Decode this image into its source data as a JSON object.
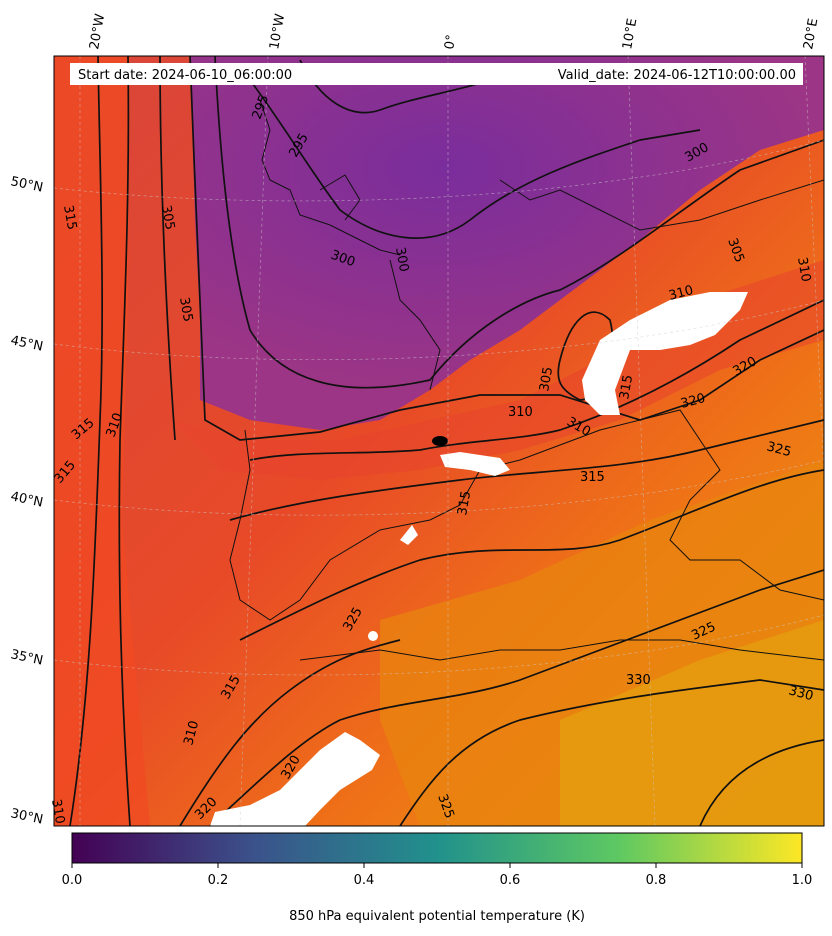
{
  "header": {
    "start_date": "Start date: 2024-06-10_06:00:00",
    "valid_date": "Valid_date: 2024-06-12T10:00:00.00"
  },
  "map": {
    "lon_labels": [
      "20°W",
      "10°W",
      "0°",
      "10°E",
      "20°E"
    ],
    "lat_labels": [
      "50°N",
      "45°N",
      "40°N",
      "35°N",
      "30°N"
    ],
    "contour_labels": [
      "295",
      "295",
      "300",
      "300",
      "300",
      "305",
      "305",
      "305",
      "310",
      "315",
      "315",
      "315",
      "310",
      "310",
      "310",
      "310",
      "315",
      "315",
      "320",
      "320",
      "325",
      "325",
      "315",
      "315",
      "310",
      "310",
      "320",
      "320",
      "325",
      "325",
      "330",
      "330",
      "305",
      "310",
      "315",
      "310",
      "320"
    ]
  },
  "colorbar": {
    "ticks": [
      "0.0",
      "0.2",
      "0.4",
      "0.6",
      "0.8",
      "1.0"
    ],
    "label": "850 hPa equivalent potential temperature (K)",
    "range": [
      0.0,
      1.0
    ],
    "colormap": "viridis",
    "colors": [
      "#440154",
      "#3b528b",
      "#21918c",
      "#5ec962",
      "#fde725"
    ]
  },
  "field_palette": {
    "cold": "#7b2e9a",
    "cool": "#a0367f",
    "mid": "#e4472f",
    "warm": "#f06a1c",
    "hot": "#e9960c"
  }
}
